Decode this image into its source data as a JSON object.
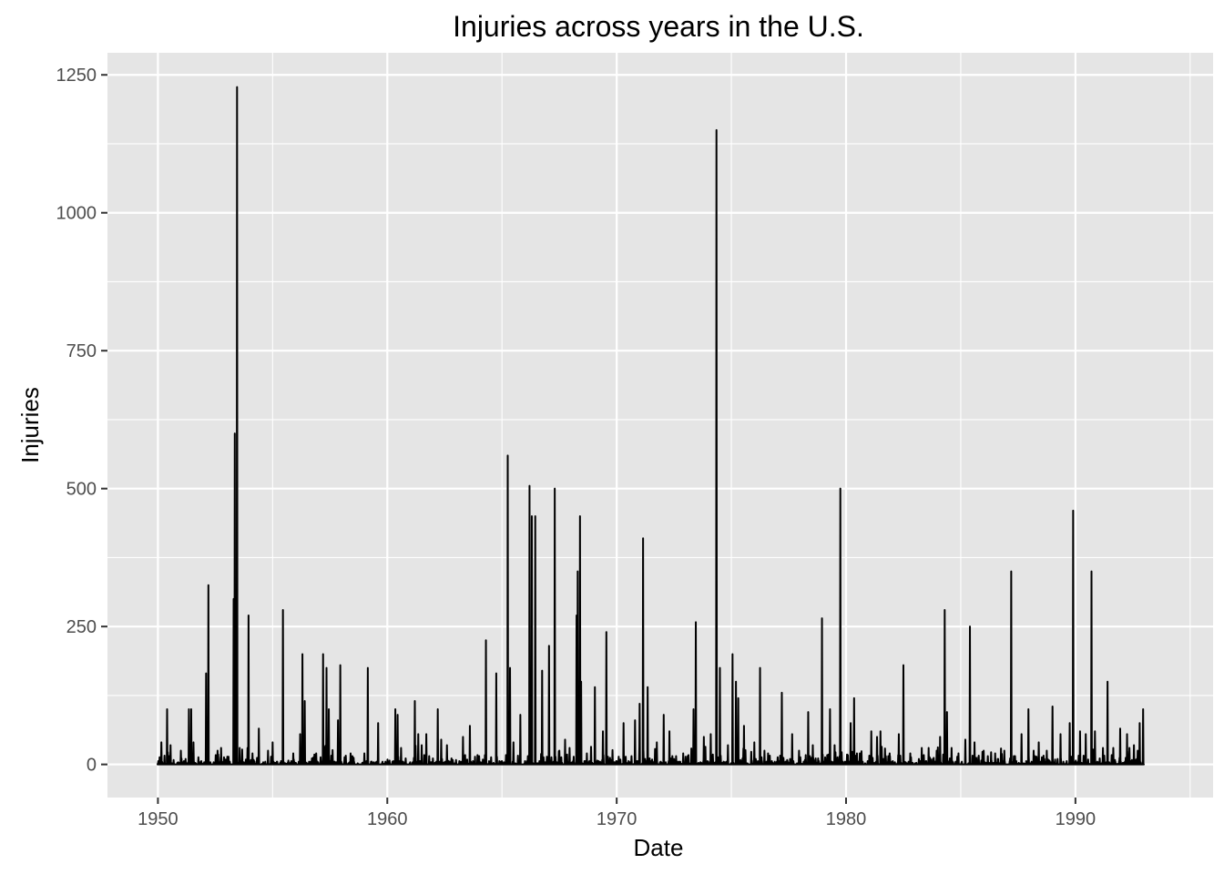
{
  "chart_data": {
    "type": "line",
    "title": "Injuries across years in the U.S.",
    "xlabel": "Date",
    "ylabel": "Injuries",
    "xlim": [
      1947.8,
      1996.0
    ],
    "ylim": [
      -60,
      1290
    ],
    "x_ticks": [
      1950,
      1960,
      1970,
      1980,
      1990
    ],
    "x_tick_labels": [
      "1950",
      "1960",
      "1970",
      "1980",
      "1990"
    ],
    "y_ticks": [
      0,
      250,
      500,
      750,
      1000,
      1250
    ],
    "y_tick_labels": [
      "0",
      "250",
      "500",
      "750",
      "1000",
      "1250"
    ],
    "grid": true,
    "colors": {
      "panel": "#e5e5e5",
      "grid": "#ffffff",
      "line": "#000000",
      "tick": "#4d4d4d"
    },
    "series": [
      {
        "name": "Injuries",
        "date_range": [
          1950.0,
          1993.0
        ],
        "baseline": 0,
        "peaks": [
          [
            1950.15,
            40
          ],
          [
            1950.4,
            100
          ],
          [
            1950.55,
            35
          ],
          [
            1951.0,
            25
          ],
          [
            1951.35,
            100
          ],
          [
            1951.45,
            100
          ],
          [
            1951.55,
            40
          ],
          [
            1952.1,
            165
          ],
          [
            1952.2,
            325
          ],
          [
            1952.6,
            25
          ],
          [
            1953.3,
            300
          ],
          [
            1953.35,
            600
          ],
          [
            1953.45,
            1228
          ],
          [
            1953.95,
            270
          ],
          [
            1954.4,
            65
          ],
          [
            1954.8,
            25
          ],
          [
            1955.0,
            40
          ],
          [
            1955.45,
            280
          ],
          [
            1955.9,
            20
          ],
          [
            1956.2,
            55
          ],
          [
            1956.3,
            200
          ],
          [
            1956.4,
            115
          ],
          [
            1956.9,
            20
          ],
          [
            1957.2,
            200
          ],
          [
            1957.35,
            175
          ],
          [
            1957.45,
            100
          ],
          [
            1957.85,
            80
          ],
          [
            1957.95,
            180
          ],
          [
            1958.4,
            20
          ],
          [
            1959.0,
            20
          ],
          [
            1959.15,
            175
          ],
          [
            1959.6,
            75
          ],
          [
            1960.35,
            100
          ],
          [
            1960.45,
            90
          ],
          [
            1960.6,
            30
          ],
          [
            1961.2,
            115
          ],
          [
            1961.35,
            55
          ],
          [
            1961.5,
            35
          ],
          [
            1961.7,
            55
          ],
          [
            1962.2,
            100
          ],
          [
            1962.35,
            45
          ],
          [
            1962.6,
            35
          ],
          [
            1963.3,
            50
          ],
          [
            1963.6,
            70
          ],
          [
            1964.3,
            225
          ],
          [
            1964.75,
            165
          ],
          [
            1965.25,
            560
          ],
          [
            1965.35,
            175
          ],
          [
            1965.5,
            40
          ],
          [
            1965.8,
            90
          ],
          [
            1966.2,
            505
          ],
          [
            1966.3,
            450
          ],
          [
            1966.45,
            450
          ],
          [
            1966.75,
            170
          ],
          [
            1967.05,
            215
          ],
          [
            1967.3,
            500
          ],
          [
            1967.5,
            25
          ],
          [
            1967.75,
            45
          ],
          [
            1968.25,
            270
          ],
          [
            1968.3,
            350
          ],
          [
            1968.4,
            450
          ],
          [
            1968.45,
            150
          ],
          [
            1968.7,
            20
          ],
          [
            1969.05,
            140
          ],
          [
            1969.4,
            60
          ],
          [
            1969.55,
            240
          ],
          [
            1970.3,
            75
          ],
          [
            1970.8,
            80
          ],
          [
            1971.0,
            110
          ],
          [
            1971.15,
            410
          ],
          [
            1971.35,
            140
          ],
          [
            1971.75,
            40
          ],
          [
            1972.05,
            90
          ],
          [
            1972.3,
            60
          ],
          [
            1972.9,
            20
          ],
          [
            1973.35,
            100
          ],
          [
            1973.45,
            258
          ],
          [
            1973.8,
            50
          ],
          [
            1974.1,
            55
          ],
          [
            1974.35,
            1150
          ],
          [
            1974.5,
            175
          ],
          [
            1974.85,
            35
          ],
          [
            1975.05,
            200
          ],
          [
            1975.2,
            150
          ],
          [
            1975.3,
            120
          ],
          [
            1975.55,
            70
          ],
          [
            1976.0,
            40
          ],
          [
            1976.25,
            175
          ],
          [
            1976.6,
            20
          ],
          [
            1977.2,
            130
          ],
          [
            1977.65,
            55
          ],
          [
            1977.95,
            25
          ],
          [
            1978.35,
            95
          ],
          [
            1978.55,
            35
          ],
          [
            1978.95,
            265
          ],
          [
            1979.3,
            100
          ],
          [
            1979.5,
            35
          ],
          [
            1979.75,
            500
          ],
          [
            1980.2,
            75
          ],
          [
            1980.35,
            120
          ],
          [
            1980.6,
            20
          ],
          [
            1981.1,
            60
          ],
          [
            1981.35,
            50
          ],
          [
            1981.5,
            60
          ],
          [
            1981.9,
            20
          ],
          [
            1982.3,
            55
          ],
          [
            1982.5,
            180
          ],
          [
            1982.8,
            20
          ],
          [
            1983.3,
            30
          ],
          [
            1983.6,
            30
          ],
          [
            1983.95,
            25
          ],
          [
            1984.1,
            50
          ],
          [
            1984.3,
            280
          ],
          [
            1984.4,
            95
          ],
          [
            1984.6,
            30
          ],
          [
            1984.9,
            20
          ],
          [
            1985.2,
            45
          ],
          [
            1985.4,
            250
          ],
          [
            1985.6,
            40
          ],
          [
            1986.0,
            25
          ],
          [
            1986.5,
            20
          ],
          [
            1986.9,
            25
          ],
          [
            1987.2,
            350
          ],
          [
            1987.65,
            55
          ],
          [
            1987.95,
            100
          ],
          [
            1988.4,
            40
          ],
          [
            1988.75,
            25
          ],
          [
            1989.0,
            105
          ],
          [
            1989.35,
            55
          ],
          [
            1989.75,
            75
          ],
          [
            1989.9,
            460
          ],
          [
            1990.2,
            60
          ],
          [
            1990.45,
            55
          ],
          [
            1990.7,
            350
          ],
          [
            1990.85,
            60
          ],
          [
            1991.2,
            30
          ],
          [
            1991.4,
            150
          ],
          [
            1991.65,
            30
          ],
          [
            1991.95,
            65
          ],
          [
            1992.25,
            55
          ],
          [
            1992.55,
            35
          ],
          [
            1992.8,
            75
          ],
          [
            1992.95,
            100
          ]
        ]
      }
    ]
  }
}
